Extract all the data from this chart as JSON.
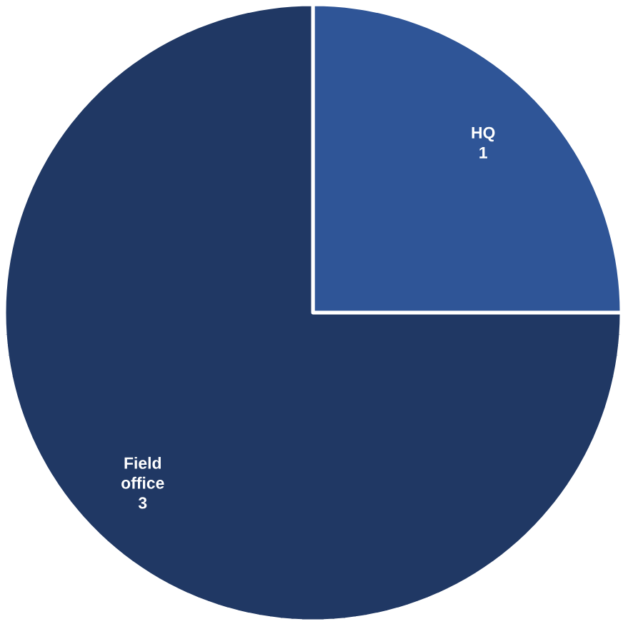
{
  "chart_data": {
    "type": "pie",
    "categories": [
      "HQ",
      "Field office"
    ],
    "values": [
      1,
      3
    ],
    "colors": [
      "#2f5597",
      "#203864"
    ],
    "data_labels": true
  }
}
